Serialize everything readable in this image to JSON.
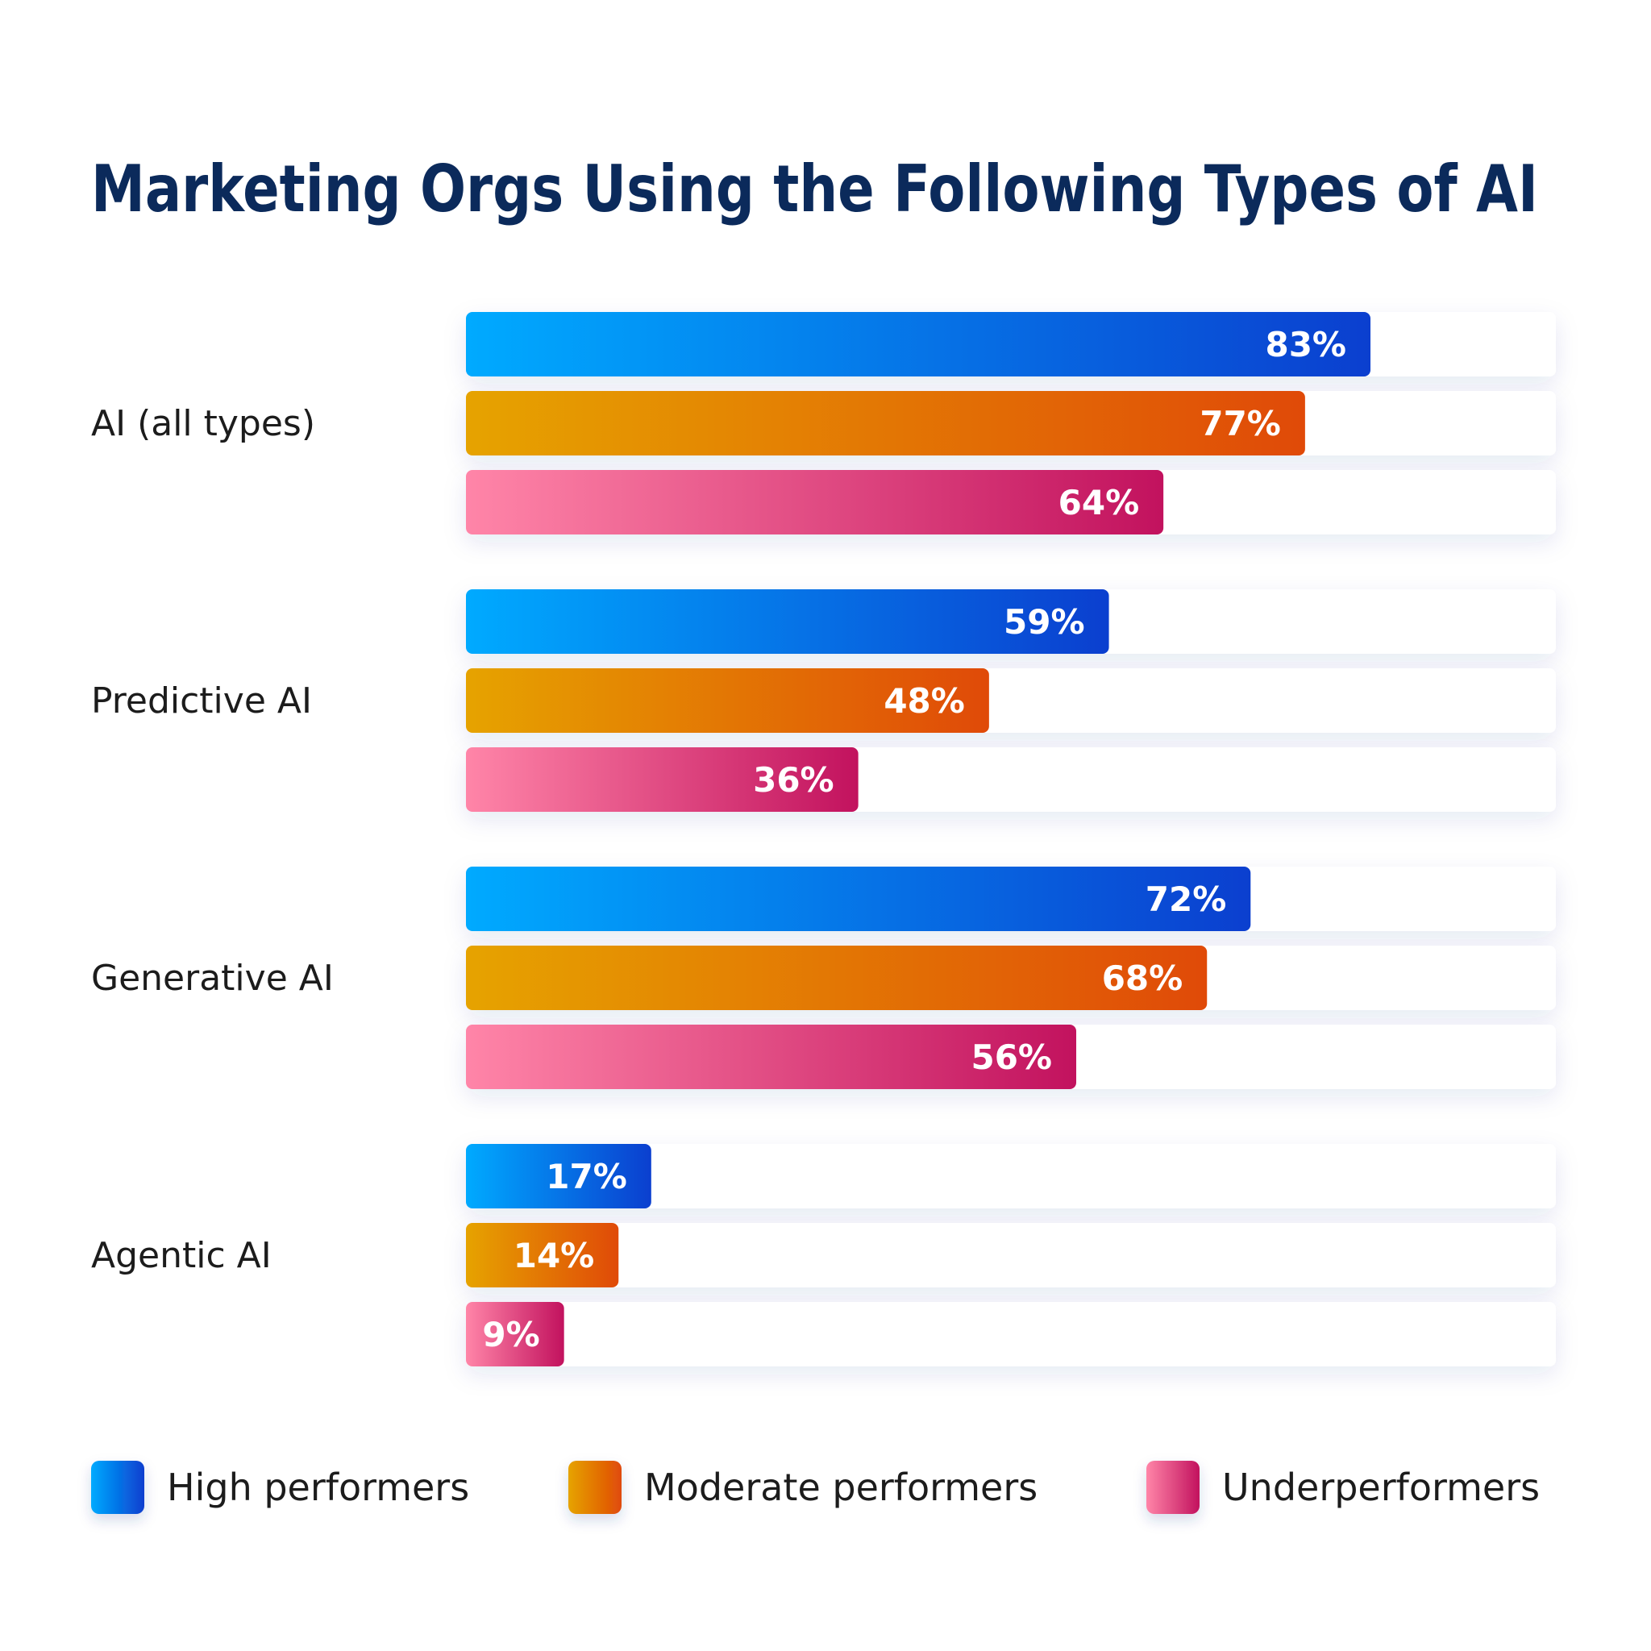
{
  "chart_data": {
    "type": "bar",
    "orientation": "horizontal",
    "title": "Marketing Orgs Using the Following Types of AI",
    "categories": [
      "AI (all types)",
      "Predictive AI",
      "Generative AI",
      "Agentic AI"
    ],
    "series": [
      {
        "name": "High performers",
        "values": [
          83,
          59,
          72,
          17
        ],
        "labels": [
          "83%",
          "59%",
          "72%",
          "17%"
        ],
        "color_start": "#00aaff",
        "color_end": "#0b3fcf"
      },
      {
        "name": "Moderate performers",
        "values": [
          77,
          48,
          68,
          14
        ],
        "labels": [
          "77%",
          "48%",
          "68%",
          "14%"
        ],
        "color_start": "#e6a300",
        "color_end": "#e04a08"
      },
      {
        "name": "Underperformers",
        "values": [
          64,
          36,
          56,
          9
        ],
        "labels": [
          "64%",
          "36%",
          "56%",
          "9%"
        ],
        "color_start": "#ff85a8",
        "color_end": "#c2125e"
      }
    ],
    "xlim": [
      0,
      100
    ],
    "grid": false,
    "legend_position": "bottom",
    "title_color": "#0b2a5b",
    "track_color": "#ffffff"
  }
}
